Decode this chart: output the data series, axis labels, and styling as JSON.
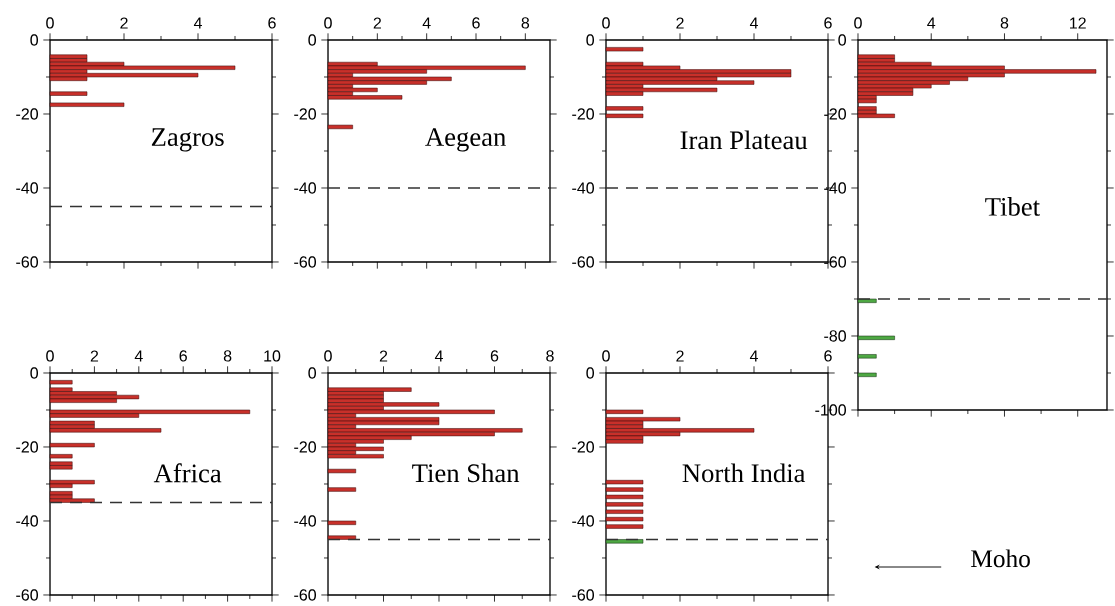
{
  "chart_data": [
    {
      "type": "histogram",
      "orientation": "horizontal",
      "title": "Zagros",
      "color": "#c8302a",
      "bins": [
        -4,
        -5,
        -6,
        -7,
        -8,
        -9,
        -10,
        -11,
        -12,
        -13,
        -14,
        -15,
        -16,
        -17,
        -18
      ],
      "values": [
        1,
        1,
        2,
        5,
        1,
        4,
        1,
        0,
        0,
        0,
        1,
        0,
        0,
        2
      ],
      "xlim": [
        0,
        6
      ],
      "xticks": [
        0,
        2,
        4,
        6
      ],
      "ylim": [
        -60,
        0
      ],
      "yticks": [
        0,
        -20,
        -40,
        -60
      ],
      "ref_lines": [
        {
          "axis": "y",
          "value": -45,
          "line_style": "dashed"
        }
      ]
    },
    {
      "type": "histogram",
      "orientation": "horizontal",
      "title": "Aegean",
      "color": "#c8302a",
      "bins": [
        -6,
        -7,
        -8,
        -9,
        -10,
        -11,
        -12,
        -13,
        -14,
        -15,
        -16,
        -17,
        -18,
        -19,
        -20,
        -21,
        -22,
        -23,
        -24
      ],
      "values": [
        2,
        8,
        4,
        1,
        5,
        4,
        1,
        2,
        1,
        3,
        0,
        0,
        0,
        0,
        0,
        0,
        0,
        1
      ],
      "xlim": [
        0,
        9
      ],
      "xticks": [
        0,
        2,
        4,
        6,
        8
      ],
      "ylim": [
        -60,
        0
      ],
      "yticks": [
        0,
        -20,
        -40,
        -60
      ],
      "ref_lines": [
        {
          "axis": "y",
          "value": -40,
          "line_style": "dashed"
        }
      ]
    },
    {
      "type": "histogram",
      "orientation": "horizontal",
      "title": "Iran Plateau",
      "color": "#c8302a",
      "bins": [
        -2,
        -3,
        -4,
        -5,
        -6,
        -7,
        -8,
        -9,
        -10,
        -11,
        -12,
        -13,
        -14,
        -15,
        -16,
        -17,
        -18,
        -19,
        -20,
        -21
      ],
      "values": [
        1,
        0,
        0,
        0,
        1,
        2,
        5,
        5,
        3,
        4,
        1,
        3,
        1,
        0,
        0,
        0,
        1,
        0,
        1
      ],
      "xlim": [
        0,
        6
      ],
      "xticks": [
        0,
        2,
        4,
        6
      ],
      "ylim": [
        -60,
        0
      ],
      "yticks": [
        0,
        -20,
        -40,
        -60
      ],
      "ref_lines": [
        {
          "axis": "y",
          "value": -40,
          "line_style": "dashed"
        }
      ]
    },
    {
      "type": "histogram",
      "orientation": "horizontal",
      "title": "Tibet",
      "bins": [
        -4,
        -5,
        -6,
        -7,
        -8,
        -9,
        -10,
        -11,
        -12,
        -13,
        -14,
        -15,
        -16,
        -17,
        -18,
        -19,
        -20,
        -21,
        -22,
        -23,
        -24,
        -25,
        -26,
        -27,
        -28,
        -29,
        -30,
        -31,
        -32,
        -33,
        -34,
        -35,
        -36,
        -37,
        -38,
        -39,
        -40,
        -41,
        -42,
        -43,
        -44,
        -45,
        -46,
        -47,
        -48,
        -49,
        -50,
        -51,
        -52,
        -53,
        -54,
        -55,
        -56,
        -57,
        -58,
        -59,
        -60,
        -61,
        -62,
        -63,
        -64,
        -65,
        -66,
        -67,
        -68,
        -69,
        -70,
        -71,
        -72,
        -73,
        -74,
        -75,
        -76,
        -77,
        -78,
        -79,
        -80,
        -81,
        -82,
        -83,
        -84,
        -85,
        -86,
        -87,
        -88,
        -89,
        -90,
        -91
      ],
      "series": [
        {
          "color": "#c8302a",
          "values": [
            2,
            2,
            4,
            8,
            13,
            8,
            6,
            5,
            4,
            3,
            3,
            1,
            1,
            0,
            1,
            1,
            2,
            0,
            0,
            0,
            0,
            0,
            0,
            0,
            0,
            0,
            0,
            0,
            0,
            0,
            0,
            0,
            0,
            0,
            0,
            0,
            0,
            0,
            0,
            0,
            0,
            0,
            0,
            0,
            0,
            0,
            0,
            0,
            0,
            0,
            0,
            0,
            0,
            0,
            0,
            0,
            0,
            0,
            0,
            0,
            0,
            0,
            0,
            0,
            0,
            0,
            0,
            0,
            0,
            0,
            0,
            0,
            0,
            0,
            0,
            0,
            0,
            0,
            0,
            0,
            0,
            0,
            0,
            0,
            0,
            0,
            0
          ]
        },
        {
          "color": "#4ea843",
          "values": [
            0,
            0,
            0,
            0,
            0,
            0,
            0,
            0,
            0,
            0,
            0,
            0,
            0,
            0,
            0,
            0,
            0,
            0,
            0,
            0,
            0,
            0,
            0,
            0,
            0,
            0,
            0,
            0,
            0,
            0,
            0,
            0,
            0,
            0,
            0,
            0,
            0,
            0,
            0,
            0,
            0,
            0,
            0,
            0,
            0,
            0,
            0,
            0,
            0,
            0,
            0,
            0,
            0,
            0,
            0,
            0,
            0,
            0,
            0,
            0,
            0,
            0,
            0,
            0,
            0,
            0,
            1,
            0,
            0,
            0,
            0,
            0,
            0,
            0,
            0,
            0,
            2,
            0,
            0,
            0,
            0,
            1,
            0,
            0,
            0,
            0,
            1
          ]
        }
      ],
      "xlim": [
        0,
        13.6
      ],
      "xticks": [
        0,
        4,
        8,
        12
      ],
      "ylim": [
        -100,
        0
      ],
      "yticks": [
        0,
        -20,
        -40,
        -60,
        -80,
        -100
      ],
      "ref_lines": [
        {
          "axis": "y",
          "value": -70,
          "line_style": "dashed"
        }
      ]
    },
    {
      "type": "histogram",
      "orientation": "horizontal",
      "title": "Africa",
      "color": "#c8302a",
      "bins": [
        -2,
        -3,
        -4,
        -5,
        -6,
        -7,
        -8,
        -9,
        -10,
        -11,
        -12,
        -13,
        -14,
        -15,
        -16,
        -17,
        -18,
        -19,
        -20,
        -21,
        -22,
        -23,
        -24,
        -25,
        -26,
        -27,
        -28,
        -29,
        -30,
        -31,
        -32,
        -33,
        -34,
        -35
      ],
      "values": [
        1,
        0,
        1,
        3,
        4,
        3,
        0,
        0,
        9,
        4,
        0,
        2,
        2,
        5,
        0,
        0,
        0,
        2,
        0,
        0,
        1,
        0,
        1,
        1,
        0,
        0,
        0,
        2,
        1,
        0,
        1,
        1,
        2
      ],
      "xlim": [
        0,
        10
      ],
      "xticks": [
        0,
        2,
        4,
        6,
        8,
        10
      ],
      "ylim": [
        -60,
        0
      ],
      "yticks": [
        0,
        -20,
        -40,
        -60
      ],
      "ref_lines": [
        {
          "axis": "y",
          "value": -35,
          "line_style": "dashed"
        }
      ]
    },
    {
      "type": "histogram",
      "orientation": "horizontal",
      "title": "Tien Shan",
      "color": "#c8302a",
      "bins": [
        -4,
        -5,
        -6,
        -7,
        -8,
        -9,
        -10,
        -11,
        -12,
        -13,
        -14,
        -15,
        -16,
        -17,
        -18,
        -19,
        -20,
        -21,
        -22,
        -23,
        -24,
        -25,
        -26,
        -27,
        -28,
        -29,
        -30,
        -31,
        -32,
        -33,
        -34,
        -35,
        -36,
        -37,
        -38,
        -39,
        -40,
        -41,
        -42,
        -43,
        -44,
        -45
      ],
      "values": [
        3,
        2,
        2,
        2,
        4,
        2,
        6,
        1,
        4,
        4,
        1,
        7,
        6,
        3,
        2,
        1,
        2,
        1,
        2,
        0,
        0,
        0,
        1,
        0,
        0,
        0,
        0,
        1,
        0,
        0,
        0,
        0,
        0,
        0,
        0,
        0,
        1,
        0,
        0,
        0,
        1
      ],
      "xlim": [
        0,
        8
      ],
      "xticks": [
        0,
        2,
        4,
        6,
        8
      ],
      "ylim": [
        -60,
        0
      ],
      "yticks": [
        0,
        -20,
        -40,
        -60
      ],
      "ref_lines": [
        {
          "axis": "y",
          "value": -45,
          "line_style": "dashed"
        }
      ]
    },
    {
      "type": "histogram",
      "orientation": "horizontal",
      "title": "North India",
      "bins": [
        -10,
        -11,
        -12,
        -13,
        -14,
        -15,
        -16,
        -17,
        -18,
        -19,
        -20,
        -21,
        -22,
        -23,
        -24,
        -25,
        -26,
        -27,
        -28,
        -29,
        -30,
        -31,
        -32,
        -33,
        -34,
        -35,
        -36,
        -37,
        -38,
        -39,
        -40,
        -41,
        -42,
        -43,
        -44,
        -45,
        -46
      ],
      "series": [
        {
          "color": "#c8302a",
          "values": [
            1,
            0,
            2,
            1,
            1,
            4,
            2,
            1,
            1,
            0,
            0,
            0,
            0,
            0,
            0,
            0,
            0,
            0,
            0,
            1,
            0,
            1,
            0,
            1,
            0,
            1,
            0,
            1,
            0,
            1,
            0,
            1,
            0,
            0,
            0,
            0
          ]
        },
        {
          "color": "#4ea843",
          "values": [
            0,
            0,
            0,
            0,
            0,
            0,
            0,
            0,
            0,
            0,
            0,
            0,
            0,
            0,
            0,
            0,
            0,
            0,
            0,
            0,
            0,
            0,
            0,
            0,
            0,
            0,
            0,
            0,
            0,
            0,
            0,
            0,
            0,
            0,
            0,
            1
          ]
        }
      ],
      "xlim": [
        0,
        6
      ],
      "xticks": [
        0,
        2,
        4,
        6
      ],
      "ylim": [
        -60,
        0
      ],
      "yticks": [
        0,
        -20,
        -40,
        -60
      ],
      "ref_lines": [
        {
          "axis": "y",
          "value": -45,
          "line_style": "dashed"
        }
      ],
      "annotations": [
        "Moho"
      ]
    }
  ]
}
